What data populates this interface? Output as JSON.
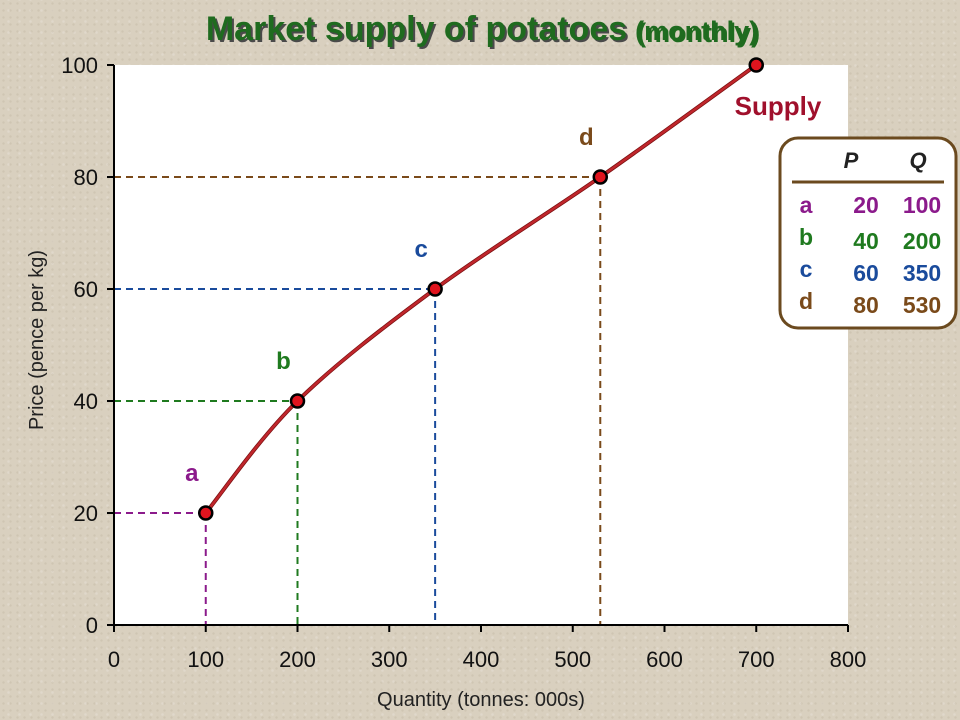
{
  "chart_data": {
    "type": "line",
    "title": "Market supply of potatoes",
    "subtitle": "(monthly)",
    "xlabel": "Quantity (tonnes: 000s)",
    "ylabel": "Price (pence per kg)",
    "xlim": [
      0,
      800
    ],
    "ylim": [
      0,
      100
    ],
    "xticks": [
      0,
      100,
      200,
      300,
      400,
      500,
      600,
      700,
      800
    ],
    "yticks": [
      0,
      20,
      40,
      60,
      80,
      100
    ],
    "grid": false,
    "series": [
      {
        "name": "Supply",
        "color": "#c0262c",
        "x": [
          100,
          200,
          350,
          530,
          700
        ],
        "y": [
          20,
          40,
          60,
          80,
          100
        ]
      }
    ],
    "labelled_points": [
      {
        "label": "a",
        "x": 100,
        "y": 20,
        "color": "#8b1a8b"
      },
      {
        "label": "b",
        "x": 200,
        "y": 40,
        "color": "#1f7a1f"
      },
      {
        "label": "c",
        "x": 350,
        "y": 60,
        "color": "#1a4b9c"
      },
      {
        "label": "d",
        "x": 530,
        "y": 80,
        "color": "#7a4a1a"
      }
    ],
    "table": {
      "headers": [
        "P",
        "Q"
      ],
      "rows": [
        {
          "label": "a",
          "p": "20",
          "q": "100",
          "color": "#8b1a8b"
        },
        {
          "label": "b",
          "p": "40",
          "q": "200",
          "color": "#1f7a1f"
        },
        {
          "label": "c",
          "p": "60",
          "q": "350",
          "color": "#1a4b9c"
        },
        {
          "label": "d",
          "p": "80",
          "q": "530",
          "color": "#7a4a1a"
        }
      ]
    }
  },
  "colors": {
    "plot_background": "#ffffff",
    "curve": "#c0262c",
    "point_fill": "#e0141e",
    "title": "#1f6b1f",
    "supply_label": "#a0102c",
    "table_border": "#6b4a1f"
  }
}
